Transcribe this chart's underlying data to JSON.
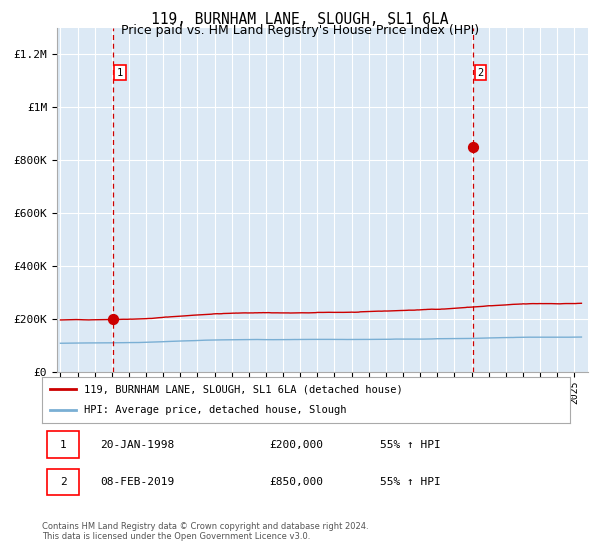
{
  "title": "119, BURNHAM LANE, SLOUGH, SL1 6LA",
  "subtitle": "Price paid vs. HM Land Registry's House Price Index (HPI)",
  "bg_color": "#dce9f5",
  "fig_bg_color": "#ffffff",
  "red_line_color": "#cc0000",
  "blue_line_color": "#7aafd4",
  "dashed_color": "#cc0000",
  "grid_color": "#ffffff",
  "sale1_x": 1998.05,
  "sale1_y": 200000,
  "sale2_x": 2019.1,
  "sale2_y": 850000,
  "ylim": [
    0,
    1300000
  ],
  "xlim_start": 1994.8,
  "xlim_end": 2025.8,
  "legend_label_red": "119, BURNHAM LANE, SLOUGH, SL1 6LA (detached house)",
  "legend_label_blue": "HPI: Average price, detached house, Slough",
  "ytick_labels": [
    "£0",
    "£200K",
    "£400K",
    "£600K",
    "£800K",
    "£1M",
    "£1.2M"
  ],
  "ytick_values": [
    0,
    200000,
    400000,
    600000,
    800000,
    1000000,
    1200000
  ],
  "footer": "Contains HM Land Registry data © Crown copyright and database right 2024.\nThis data is licensed under the Open Government Licence v3.0."
}
